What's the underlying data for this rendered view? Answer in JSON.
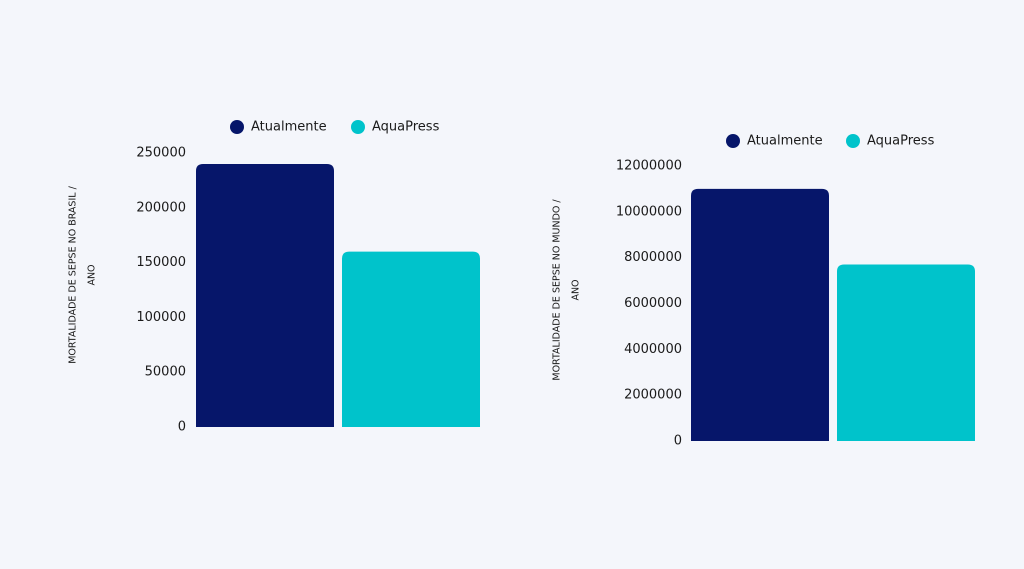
{
  "chart_data": [
    {
      "type": "bar",
      "ylabel": [
        "MORTALIDADE DE SEPSE NO BRASIL  /",
        "ANO"
      ],
      "categories": [
        null
      ],
      "series": [
        {
          "name": "Atualmente",
          "color": "#06166a",
          "values": [
            240000
          ]
        },
        {
          "name": "AquaPress",
          "color": "#00c3cb",
          "values": [
            160000
          ]
        }
      ],
      "ylim": [
        0,
        250000
      ],
      "yticks": [
        0,
        50000,
        100000,
        150000,
        200000,
        250000
      ],
      "grid": false,
      "legend": "top"
    },
    {
      "type": "bar",
      "ylabel": [
        "MORTALIDADE DE SEPSE NO MUNDO  /",
        "ANO"
      ],
      "categories": [
        null
      ],
      "series": [
        {
          "name": "Atualmente",
          "color": "#06166a",
          "values": [
            11000000
          ]
        },
        {
          "name": "AquaPress",
          "color": "#00c3cb",
          "values": [
            7700000
          ]
        }
      ],
      "ylim": [
        0,
        12000000
      ],
      "yticks": [
        0,
        2000000,
        4000000,
        6000000,
        8000000,
        10000000,
        12000000
      ],
      "grid": false,
      "legend": "top"
    }
  ]
}
